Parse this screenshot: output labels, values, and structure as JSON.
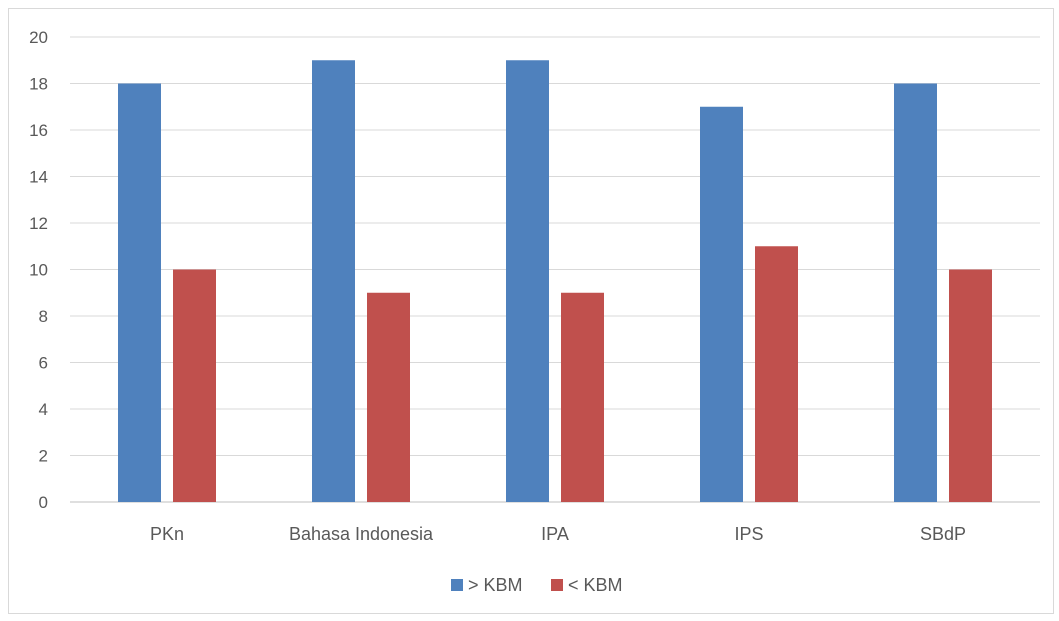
{
  "chart_data": {
    "type": "bar",
    "categories": [
      "PKn",
      "Bahasa Indonesia",
      "IPA",
      "IPS",
      "SBdP"
    ],
    "series": [
      {
        "name": "> KBM",
        "color": "#4f81bd",
        "values": [
          18,
          19,
          19,
          17,
          18
        ]
      },
      {
        "name": "< KBM",
        "color": "#c0504d",
        "values": [
          10,
          9,
          9,
          11,
          10
        ]
      }
    ],
    "yticks": [
      0,
      2,
      4,
      6,
      8,
      10,
      12,
      14,
      16,
      18,
      20
    ],
    "ylim": [
      0,
      20
    ],
    "grid": true,
    "legend_position": "bottom"
  }
}
